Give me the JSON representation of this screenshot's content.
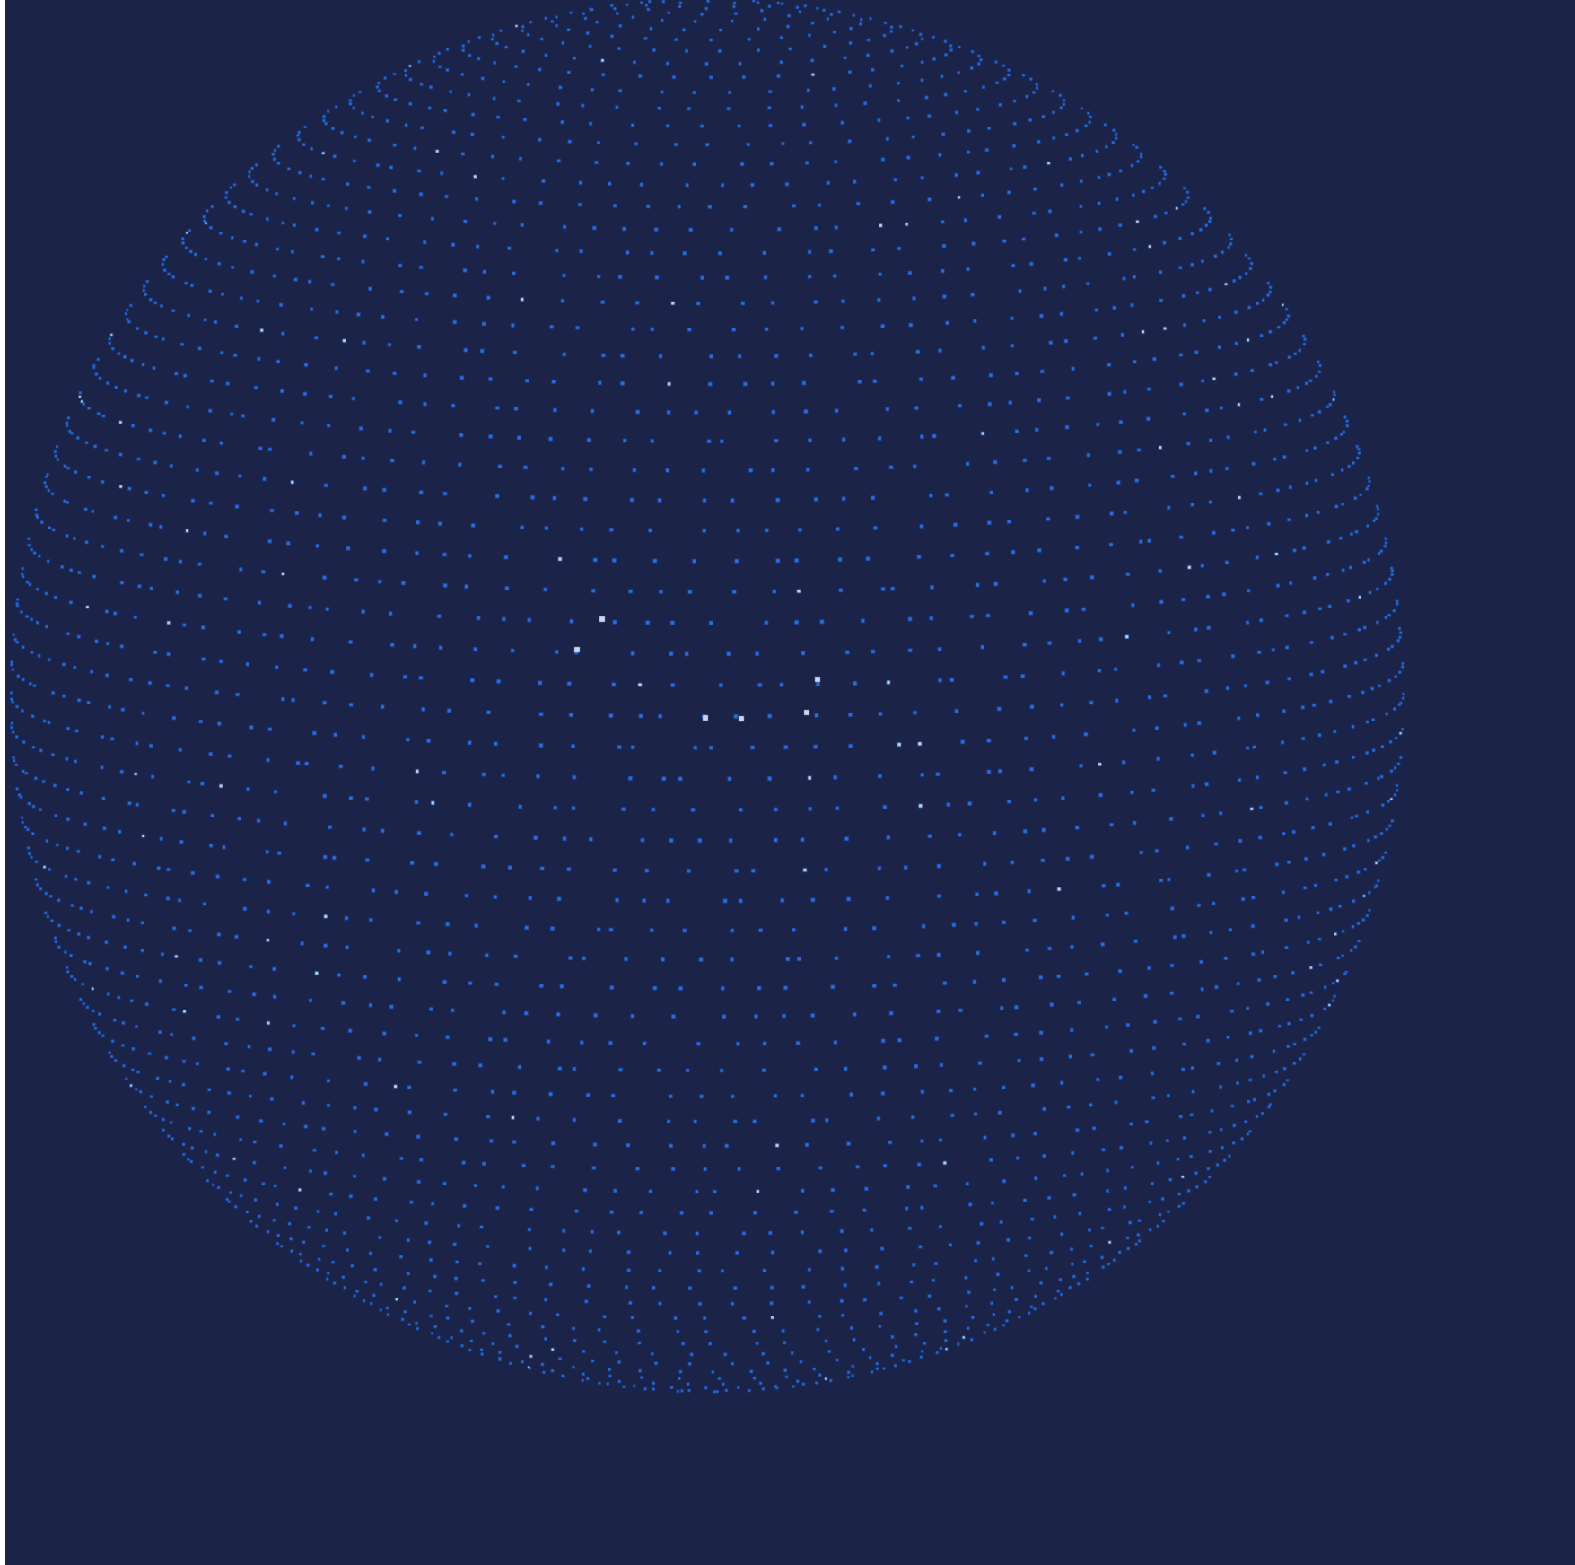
{
  "visualization": {
    "type": "particle-sphere",
    "colors": {
      "background": "#1b2349",
      "particle": "#2f6fe0",
      "particle_edge": "#174a9e",
      "highlight": "#c9d6ec"
    }
  }
}
